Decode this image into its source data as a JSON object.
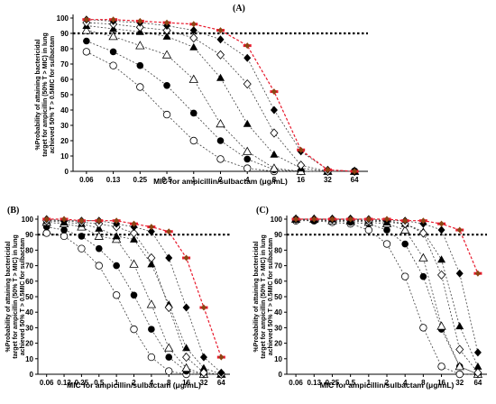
{
  "chart_data": [
    {
      "type": "line",
      "panel_label": "(A)",
      "ylabel_lines": [
        "%Probability of attaining bactericidal",
        "target for ampicillin (50% T > MIC) in lung",
        "achieved 50% T > 0.5MIC for sulbactam"
      ],
      "xlabel": "MIC for ampicillin/sulbactam (μg/mL)",
      "categories": [
        "0.06",
        "0.13",
        "0.25",
        "0.5",
        "1",
        "2",
        "4",
        "8",
        "16",
        "32",
        "64"
      ],
      "yticks": [
        "0",
        "10",
        "20",
        "30",
        "40",
        "50",
        "60",
        "70",
        "80",
        "90",
        "100"
      ],
      "ylim": [
        0,
        100
      ],
      "target_line": 90,
      "series": [
        {
          "marker": "circle-open",
          "values": [
            78,
            69,
            55,
            37,
            20,
            8,
            2,
            0,
            0,
            0,
            0
          ]
        },
        {
          "marker": "circle-filled",
          "values": [
            85,
            78,
            69,
            56,
            38,
            20,
            8,
            1,
            0,
            0,
            0
          ]
        },
        {
          "marker": "triangle-open",
          "values": [
            92,
            88,
            82,
            76,
            60,
            31,
            13,
            2,
            0,
            0,
            0
          ]
        },
        {
          "marker": "triangle-filled",
          "values": [
            95,
            93,
            91,
            88,
            81,
            61,
            31,
            11,
            2,
            0,
            0
          ]
        },
        {
          "marker": "diamond-open",
          "values": [
            97,
            96,
            94,
            92,
            87,
            76,
            57,
            25,
            4,
            0,
            0
          ]
        },
        {
          "marker": "diamond-filled",
          "values": [
            99,
            98,
            97,
            95,
            92,
            86,
            74,
            40,
            13,
            1,
            0
          ]
        },
        {
          "marker": "red-dash",
          "values": [
            99,
            99,
            98,
            97,
            96,
            92,
            82,
            52,
            14,
            1,
            0
          ]
        }
      ]
    },
    {
      "type": "line",
      "panel_label": "(B)",
      "ylabel_lines": [
        "%Probability of attaining bactericidal",
        "target for ampicillin (50% T > MIC) in lung",
        "achieved 50% T > 0.5MIC for sulbactam"
      ],
      "xlabel": "MIC for ampicillin/sulbactam (μg/mL)",
      "categories": [
        "0.06",
        "0.13",
        "0.25",
        "0.5",
        "1",
        "2",
        "4",
        "8",
        "16",
        "32",
        "64"
      ],
      "yticks": [
        "0",
        "10",
        "20",
        "30",
        "40",
        "50",
        "60",
        "70",
        "80",
        "90",
        "100"
      ],
      "ylim": [
        0,
        100
      ],
      "target_line": 90,
      "series": [
        {
          "marker": "circle-open",
          "values": [
            91,
            89,
            81,
            70,
            51,
            29,
            11,
            2,
            0,
            0,
            0
          ]
        },
        {
          "marker": "circle-filled",
          "values": [
            95,
            93,
            89,
            81,
            70,
            51,
            29,
            11,
            2,
            0,
            0
          ]
        },
        {
          "marker": "triangle-open",
          "values": [
            98,
            97,
            95,
            89,
            87,
            71,
            45,
            17,
            4,
            0,
            0
          ]
        },
        {
          "marker": "triangle-filled",
          "values": [
            99,
            98,
            97,
            94,
            89,
            87,
            71,
            45,
            17,
            4,
            0
          ]
        },
        {
          "marker": "diamond-open",
          "values": [
            99,
            99,
            98,
            97,
            95,
            91,
            75,
            43,
            11,
            1,
            0
          ]
        },
        {
          "marker": "diamond-filled",
          "values": [
            100,
            99,
            99,
            99,
            97,
            95,
            92,
            75,
            43,
            11,
            1
          ]
        },
        {
          "marker": "red-dash",
          "values": [
            100,
            100,
            99,
            99,
            99,
            97,
            95,
            92,
            75,
            43,
            11
          ]
        }
      ]
    },
    {
      "type": "line",
      "panel_label": "(C)",
      "ylabel_lines": [
        "%Probability of attaining bactericidal",
        "target for ampicillin (50% T > MIC) in lung",
        "achieved 50% T > 0.5MIC for sulbactam"
      ],
      "xlabel": "MIC for ampicillin/sulbactam (μg/mL)",
      "categories": [
        "0.06",
        "0.13",
        "0.25",
        "0.5",
        "1",
        "2",
        "4",
        "8",
        "16",
        "32",
        "64"
      ],
      "yticks": [
        "0",
        "10",
        "20",
        "30",
        "40",
        "50",
        "60",
        "70",
        "80",
        "90",
        "100"
      ],
      "ylim": [
        0,
        100
      ],
      "target_line": 90,
      "series": [
        {
          "marker": "circle-open",
          "values": [
            99,
            99,
            98,
            97,
            93,
            84,
            63,
            30,
            5,
            0,
            0
          ]
        },
        {
          "marker": "circle-filled",
          "values": [
            100,
            99,
            99,
            98,
            97,
            93,
            84,
            63,
            29,
            5,
            0
          ]
        },
        {
          "marker": "triangle-open",
          "values": [
            100,
            100,
            99,
            99,
            98,
            97,
            93,
            75,
            31,
            5,
            0
          ]
        },
        {
          "marker": "triangle-filled",
          "values": [
            100,
            100,
            100,
            99,
            99,
            98,
            97,
            92,
            74,
            31,
            5
          ]
        },
        {
          "marker": "diamond-open",
          "values": [
            100,
            100,
            100,
            100,
            99,
            99,
            97,
            91,
            64,
            16,
            1
          ]
        },
        {
          "marker": "diamond-filled",
          "values": [
            100,
            100,
            100,
            100,
            100,
            99,
            99,
            97,
            93,
            65,
            14
          ]
        },
        {
          "marker": "red-dash",
          "values": [
            100,
            100,
            100,
            100,
            100,
            100,
            99,
            99,
            97,
            93,
            65
          ]
        }
      ]
    }
  ],
  "colors": {
    "axis": "#000000",
    "target": "#000000",
    "curve": "#404040",
    "red_marker": "#e8192c",
    "brown_marker": "#8b4513"
  }
}
